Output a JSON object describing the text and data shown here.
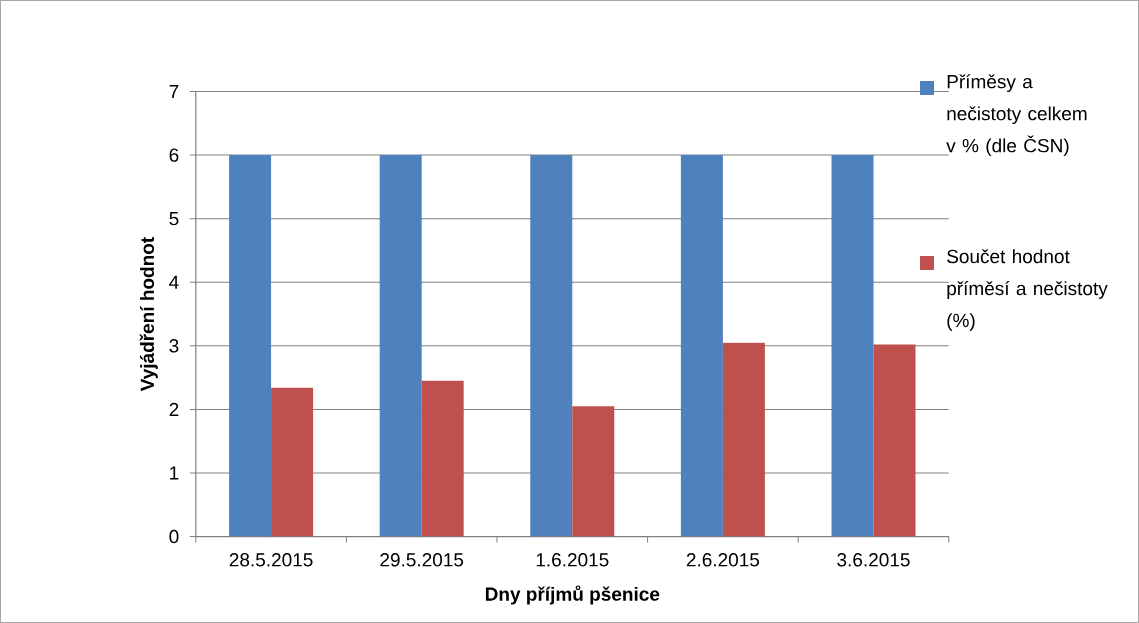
{
  "chart_data": {
    "type": "bar",
    "xlabel": "Dny příjmů pšenice",
    "ylabel": "Vyjádření hodnot",
    "categories": [
      "28.5.2015",
      "29.5.2015",
      "1.6.2015",
      "2.6.2015",
      "3.6.2015"
    ],
    "series": [
      {
        "name": "Příměsy a nečistoty celkem v % (dle ČSN)",
        "color": "#4f81bd",
        "values": [
          6,
          6,
          6,
          6,
          6
        ]
      },
      {
        "name": "Součet hodnot příměsí a nečistoty (%)",
        "color": "#c0504d",
        "values": [
          2.34,
          2.45,
          2.05,
          3.05,
          3.02
        ]
      }
    ],
    "ylim": [
      0,
      7
    ],
    "yticks": [
      0,
      1,
      2,
      3,
      4,
      5,
      6,
      7
    ],
    "grid": "y",
    "legend": "right"
  }
}
